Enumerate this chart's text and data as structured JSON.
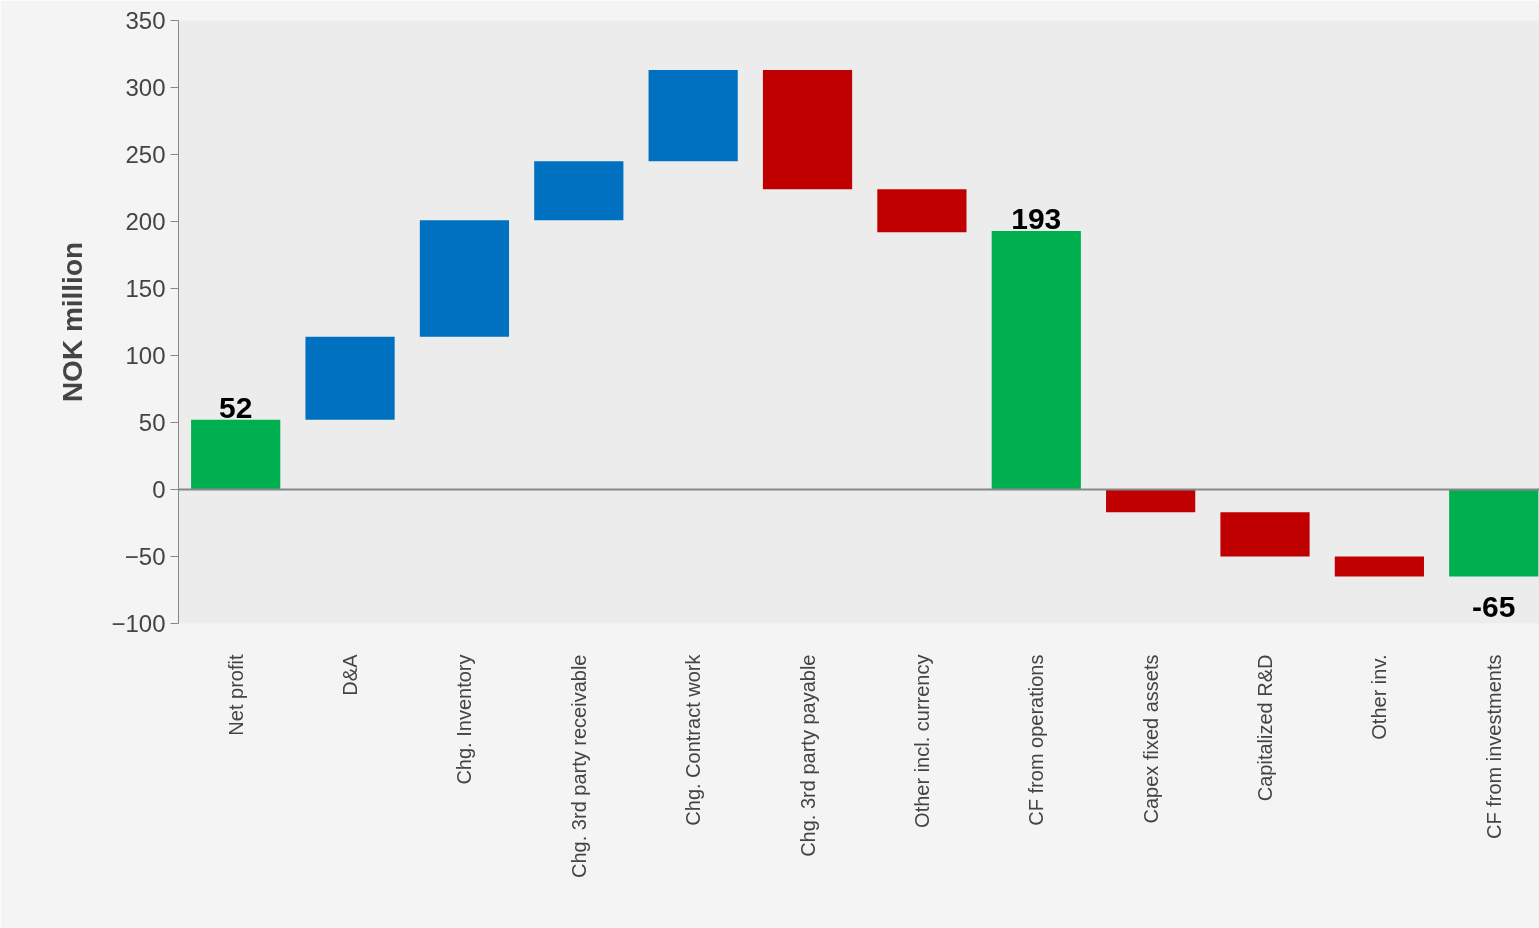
{
  "chart_data": {
    "type": "bar",
    "ylabel": "NOK million",
    "categories": [
      "Net profit",
      "D&A",
      "Chg. Inventory",
      "Chg. 3rd party receivable",
      "Chg. Contract work",
      "Chg. 3rd party payable",
      "Other incl. currency",
      "CF from operations",
      "Capex fixed assets",
      "Capitalized R&D",
      "Other inv.",
      "CF from investments"
    ],
    "base": [
      0,
      52,
      114,
      201,
      245,
      313,
      224,
      0,
      0,
      -17,
      -50,
      0
    ],
    "values": [
      52,
      62,
      87,
      44,
      68,
      -89,
      -32,
      193,
      -17,
      -33,
      -15,
      -65
    ],
    "colors": [
      "#00b050",
      "#0070c0",
      "#0070c0",
      "#0070c0",
      "#0070c0",
      "#c00000",
      "#c00000",
      "#00b050",
      "#c00000",
      "#c00000",
      "#c00000",
      "#00b050"
    ],
    "value_labels": [
      "52",
      null,
      null,
      null,
      null,
      null,
      null,
      "193",
      null,
      null,
      null,
      "-65"
    ],
    "ylim": [
      -100,
      350
    ],
    "yticks": [
      -100,
      -50,
      0,
      50,
      100,
      150,
      200,
      250,
      300,
      350
    ]
  }
}
